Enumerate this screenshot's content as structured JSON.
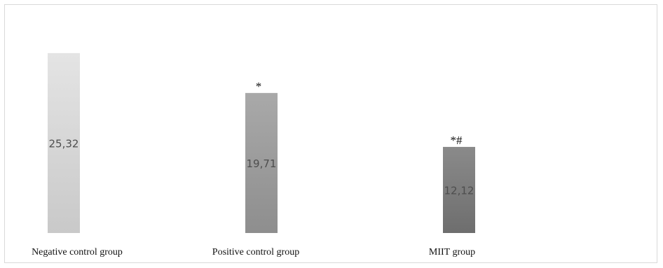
{
  "chart_data": {
    "type": "bar",
    "title": "",
    "xlabel": "",
    "ylabel": "",
    "categories": [
      "Negative control group",
      "Positive control group",
      "MIIT group"
    ],
    "values": [
      25.32,
      19.71,
      12.12
    ],
    "value_labels": [
      "25,32",
      "19,71",
      "12,12"
    ],
    "annotations": [
      "",
      "*",
      "*#"
    ],
    "ylim": [
      0,
      26
    ],
    "grid": false,
    "legend": "none",
    "colors": {
      "gradients": [
        [
          "#e4e4e4",
          "#c9c9c9"
        ],
        [
          "#a9a9a9",
          "#8e8e8e"
        ],
        [
          "#8a8a8a",
          "#6e6e6e"
        ]
      ],
      "frame": "#d9d9d9"
    }
  }
}
